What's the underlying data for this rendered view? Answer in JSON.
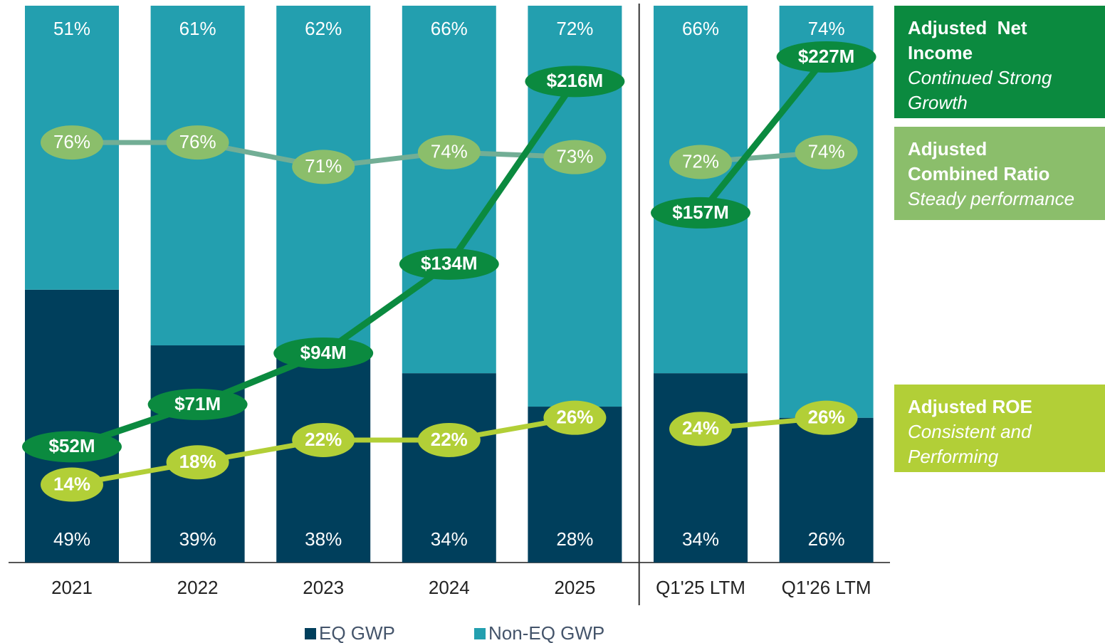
{
  "chart_data": {
    "type": "bar",
    "stacked": true,
    "categories": [
      "2021",
      "2022",
      "2023",
      "2024",
      "2025",
      "Q1'25 LTM",
      "Q1'26 LTM"
    ],
    "ylim": [
      0,
      100
    ],
    "divider_after": 4,
    "series": [
      {
        "name": "EQ GWP",
        "color": "#003F5C",
        "values": [
          49,
          39,
          38,
          34,
          28,
          34,
          26
        ],
        "value_labels": [
          "49%",
          "39%",
          "38%",
          "34%",
          "28%",
          "34%",
          "26%"
        ]
      },
      {
        "name": "Non-EQ GWP",
        "color": "#239FAF",
        "values": [
          51,
          61,
          62,
          66,
          72,
          66,
          74
        ],
        "value_labels": [
          "51%",
          "61%",
          "62%",
          "66%",
          "72%",
          "66%",
          "74%"
        ]
      }
    ],
    "lines": [
      {
        "name": "Adjusted  Net Income",
        "subtitle": "Continued Strong Growth",
        "color": "#0B8A3F",
        "values": [
          52,
          71,
          94,
          134,
          216,
          157,
          227
        ],
        "value_labels": [
          "$52M",
          "$71M",
          "$94M",
          "$134M",
          "$216M",
          "$157M",
          "$227M"
        ],
        "ylim": [
          0,
          250
        ]
      },
      {
        "name": "Adjusted Combined Ratio",
        "subtitle": "Steady performance",
        "color": "#8BBE6B",
        "values": [
          76,
          76,
          71,
          74,
          73,
          72,
          74
        ],
        "value_labels": [
          "76%",
          "76%",
          "71%",
          "74%",
          "73%",
          "72%",
          "74%"
        ],
        "ylim": [
          -10,
          104
        ]
      },
      {
        "name": "Adjusted ROE",
        "subtitle": "Consistent and Performing",
        "color": "#B2CF37",
        "values": [
          14,
          18,
          22,
          22,
          26,
          24,
          26
        ],
        "value_labels": [
          "14%",
          "18%",
          "22%",
          "22%",
          "26%",
          "24%",
          "26%"
        ],
        "ylim": [
          0,
          100
        ]
      }
    ]
  }
}
